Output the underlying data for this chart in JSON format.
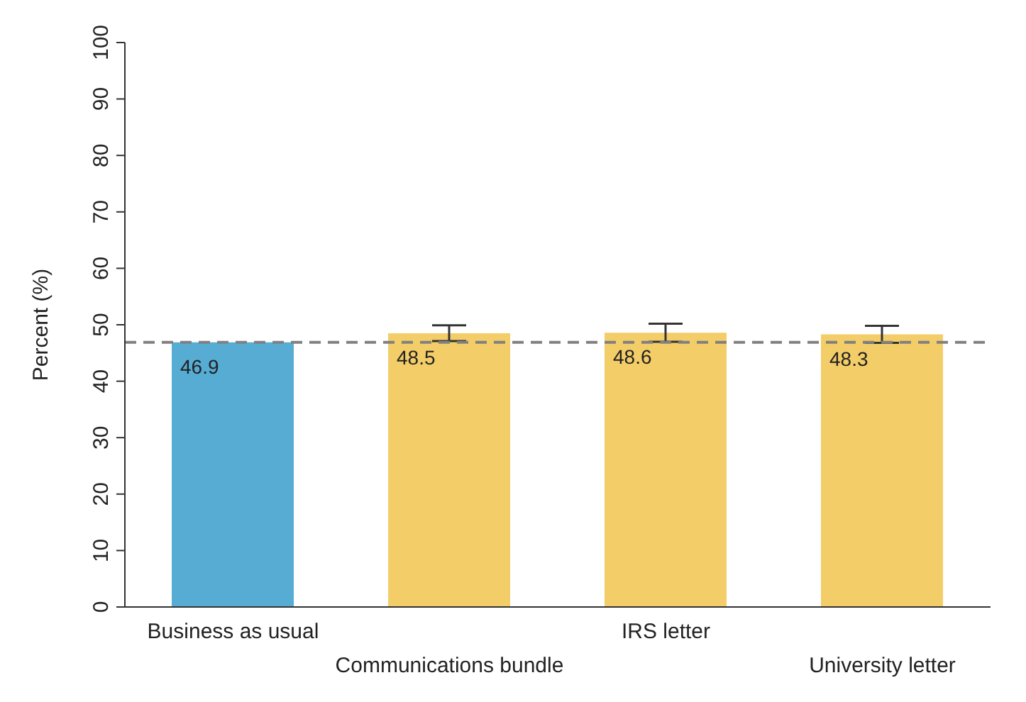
{
  "chart_data": {
    "type": "bar",
    "ylabel": "Percent (%)",
    "categories": [
      "Business as usual",
      "Communications bundle",
      "IRS letter",
      "University letter"
    ],
    "values": [
      46.9,
      48.5,
      48.6,
      48.3
    ],
    "colors": [
      "#56acd3",
      "#f3cd68",
      "#f3cd68",
      "#f3cd68"
    ],
    "errors": [
      null,
      1.4,
      1.6,
      1.5
    ],
    "data_labels": true,
    "ylim": [
      0,
      100
    ],
    "yticks": [
      0,
      10,
      20,
      30,
      40,
      50,
      60,
      70,
      80,
      90,
      100
    ],
    "ref_lines": [
      {
        "axis": "y",
        "value": 46.9,
        "color": "#808080",
        "line_style": "dashed"
      }
    ],
    "grid": false,
    "legend": false
  }
}
